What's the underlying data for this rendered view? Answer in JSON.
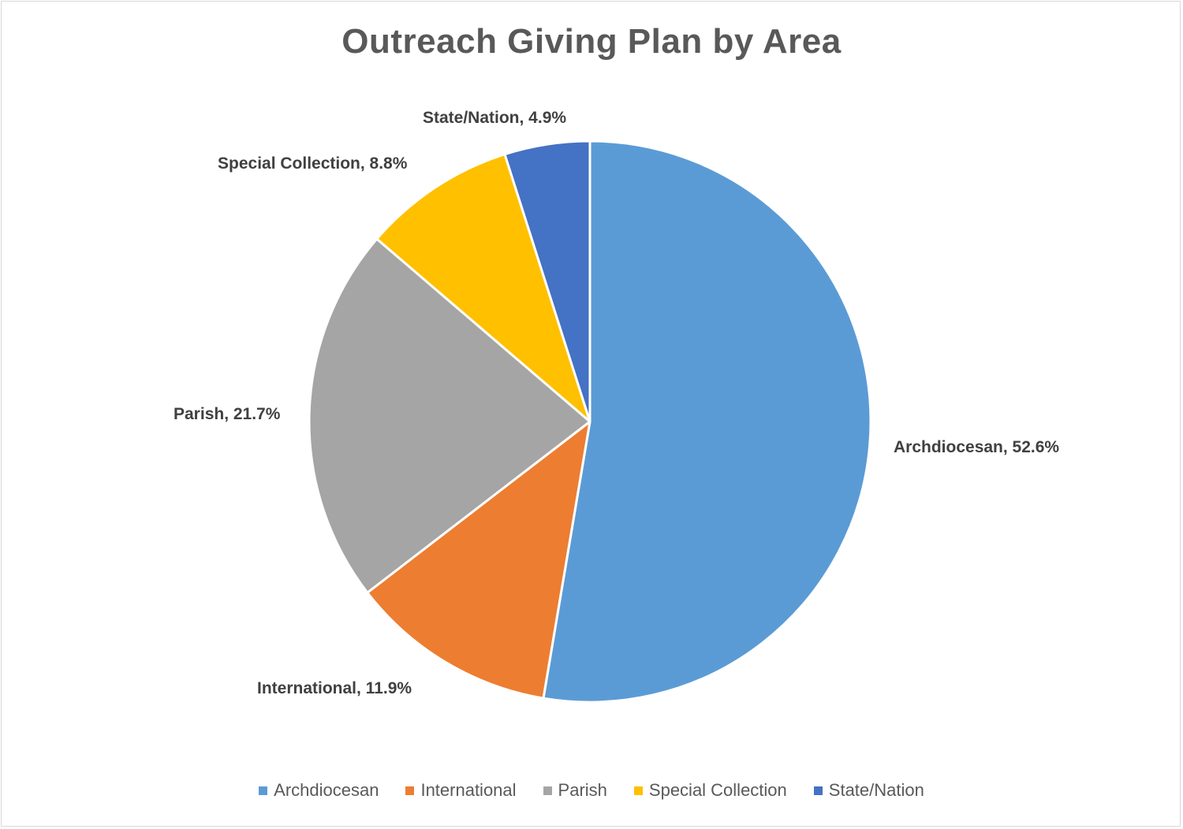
{
  "chart_data": {
    "type": "pie",
    "title": "Outreach Giving Plan by Area",
    "categories": [
      "Archdiocesan",
      "International",
      "Parish",
      "Special Collection",
      "State/Nation"
    ],
    "values": [
      52.6,
      11.9,
      21.7,
      8.8,
      4.9
    ],
    "value_unit": "%",
    "colors": [
      "#5B9BD5",
      "#ED7D31",
      "#A5A5A5",
      "#FFC000",
      "#4472C4"
    ],
    "data_labels": [
      "Archdiocesan, 52.6%",
      "International, 11.9%",
      "Parish, 21.7%",
      "Special Collection, 8.8%",
      "State/Nation, 4.9%"
    ],
    "start_angle": "12 o'clock",
    "direction": "clockwise",
    "legend": {
      "placement": "bottom",
      "entries": [
        "Archdiocesan",
        "International",
        "Parish",
        "Special Collection",
        "State/Nation"
      ]
    }
  }
}
